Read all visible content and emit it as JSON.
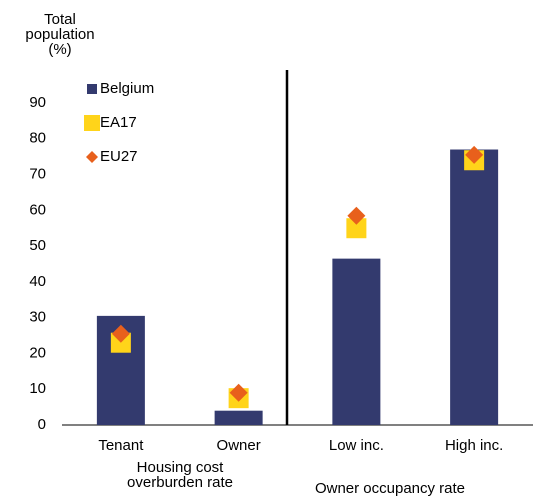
{
  "chart_data": {
    "type": "bar",
    "y_label": "Total population (%)",
    "categories": [
      "Tenant",
      "Owner",
      "Low inc.",
      "High inc."
    ],
    "group_labels": [
      "Housing cost overburden rate",
      "Owner occupancy rate"
    ],
    "series": [
      {
        "name": "Belgium",
        "color": "#333a6e",
        "marker": "bar",
        "values": [
          30.5,
          4,
          46.5,
          77
        ]
      },
      {
        "name": "EA17",
        "color": "#ffd41a",
        "marker": "square",
        "values": [
          23,
          7.5,
          55,
          74
        ]
      },
      {
        "name": "EU27",
        "color": "#e8601c",
        "marker": "diamond",
        "values": [
          25.5,
          9,
          58.5,
          75.5
        ]
      }
    ],
    "ylim": [
      0,
      90
    ],
    "yticks": [
      0,
      10,
      20,
      30,
      40,
      50,
      60,
      70,
      80,
      90
    ],
    "grid": false,
    "legend": "top-left"
  }
}
